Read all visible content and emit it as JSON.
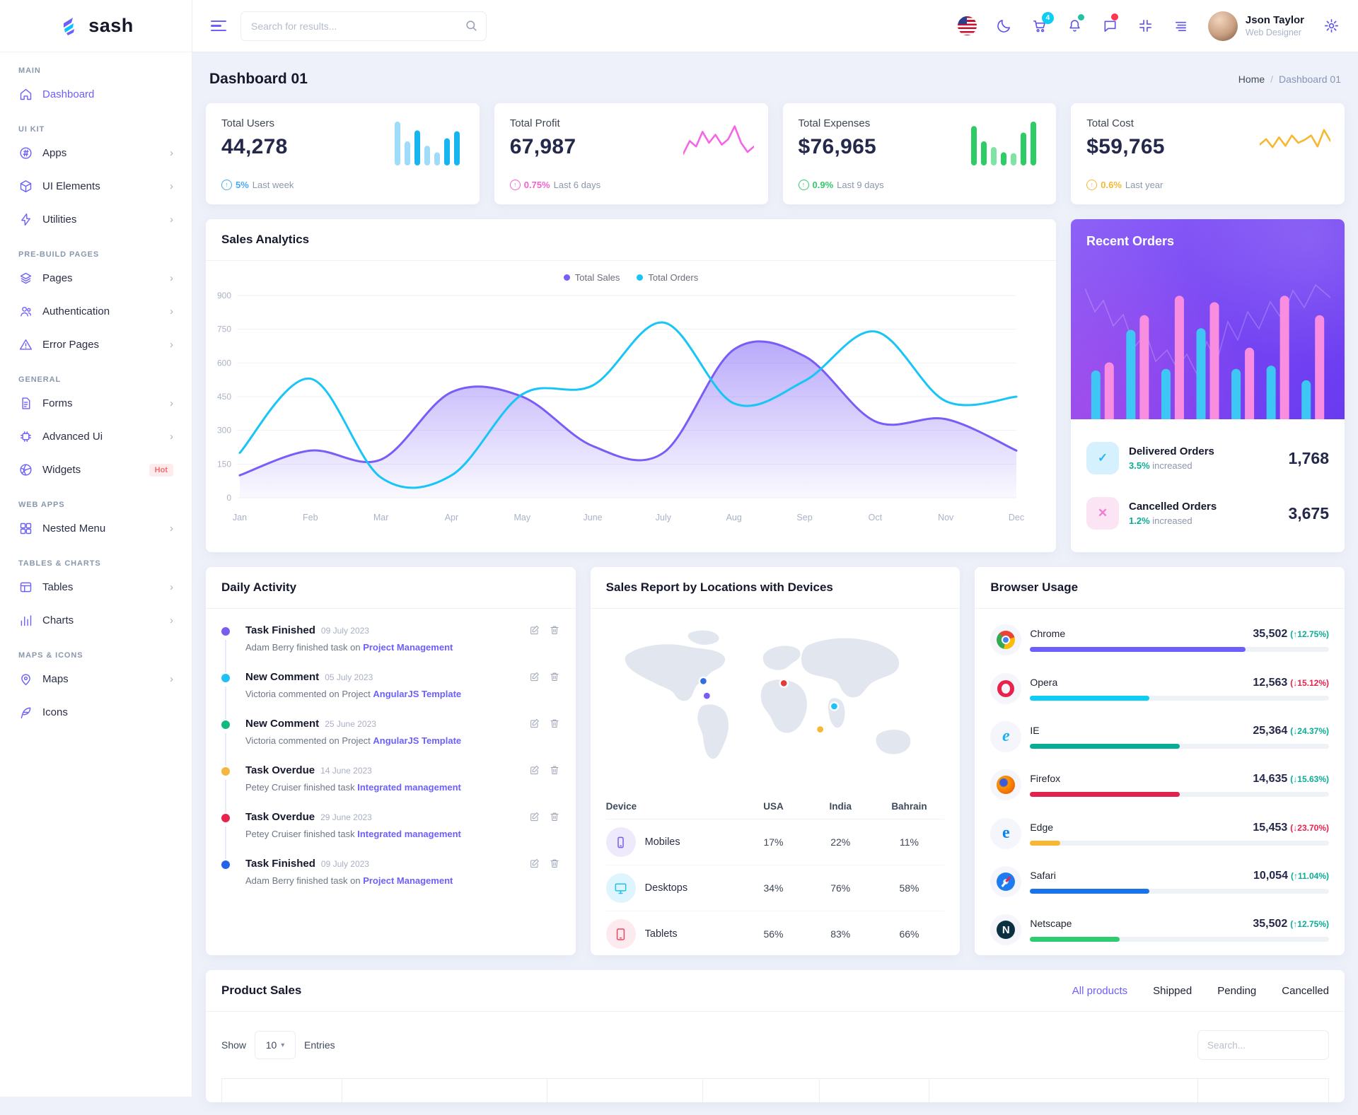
{
  "brand": {
    "name": "sash"
  },
  "topbar": {
    "search_placeholder": "Search for results...",
    "cart_badge": "4",
    "user": {
      "name": "Json Taylor",
      "role": "Web Designer"
    }
  },
  "page": {
    "title": "Dashboard 01",
    "breadcrumb": {
      "home": "Home",
      "separator": "/",
      "current": "Dashboard 01"
    }
  },
  "stats": [
    {
      "label": "Total Users",
      "value": "44,278",
      "delta": "5%",
      "note": "Last week",
      "delta_color": "#45aaf2",
      "chart": {
        "type": "bar",
        "heights": [
          1.0,
          0.55,
          0.8,
          0.45,
          0.3,
          0.62,
          0.78
        ],
        "colors": [
          "#9fdcfa",
          "#9fdcfa",
          "#17b5f0",
          "#9fdcfa",
          "#9fdcfa",
          "#17b5f0",
          "#17b5f0"
        ]
      }
    },
    {
      "label": "Total Profit",
      "value": "67,987",
      "delta": "0.75%",
      "note": "Last 6 days",
      "delta_color": "#f062d0",
      "chart": {
        "type": "line",
        "color": "#f664e8",
        "points": [
          0.8,
          0.45,
          0.6,
          0.2,
          0.5,
          0.28,
          0.55,
          0.4,
          0.05,
          0.5,
          0.75,
          0.6
        ]
      }
    },
    {
      "label": "Total Expenses",
      "value": "$76,965",
      "delta": "0.9%",
      "note": "Last 9 days",
      "delta_color": "#32cb69",
      "chart": {
        "type": "bar",
        "heights": [
          0.9,
          0.55,
          0.42,
          0.3,
          0.28,
          0.75,
          1.0
        ],
        "colors": [
          "#2ecc66",
          "#2ecc66",
          "#7fe3a5",
          "#2ecc66",
          "#7fe3a5",
          "#2ecc66",
          "#2ecc66"
        ]
      }
    },
    {
      "label": "Total Cost",
      "value": "$59,765",
      "delta": "0.6%",
      "note": "Last year",
      "delta_color": "#f7b731",
      "chart": {
        "type": "line",
        "color": "#f7b731",
        "points": [
          0.55,
          0.4,
          0.62,
          0.35,
          0.58,
          0.3,
          0.5,
          0.42,
          0.3,
          0.6,
          0.15,
          0.45
        ]
      }
    }
  ],
  "sales_analytics": {
    "title": "Sales Analytics",
    "chart_data": {
      "type": "area+line",
      "x": [
        "Jan",
        "Feb",
        "Mar",
        "Apr",
        "May",
        "June",
        "July",
        "Aug",
        "Sep",
        "Oct",
        "Nov",
        "Dec"
      ],
      "ylim": [
        0,
        900
      ],
      "yticks": [
        0,
        150,
        300,
        450,
        600,
        750,
        900
      ],
      "grid": true,
      "legend_position": "top",
      "series": [
        {
          "name": "Total Sales",
          "type": "area",
          "color": "#7a5cf6",
          "values": [
            100,
            210,
            170,
            470,
            450,
            230,
            200,
            660,
            630,
            340,
            350,
            210
          ]
        },
        {
          "name": "Total Orders",
          "type": "line",
          "color": "#17c5f6",
          "values": [
            200,
            530,
            90,
            100,
            460,
            500,
            780,
            420,
            520,
            740,
            430,
            450
          ]
        }
      ]
    }
  },
  "recent_orders": {
    "title": "Recent Orders",
    "bar_pairs": [
      [
        30,
        35
      ],
      [
        55,
        64
      ],
      [
        31,
        76
      ],
      [
        56,
        72
      ],
      [
        31,
        44
      ],
      [
        33,
        76
      ],
      [
        24,
        64
      ]
    ],
    "bar_colors": {
      "orders": "#3ec7f4",
      "sales": "#f98ee0"
    },
    "rows": [
      {
        "icon": "check",
        "label": "Delivered Orders",
        "delta": "3.5%",
        "delta_suffix": "increased",
        "value": "1,768",
        "icon_bg": "#d5f1fd",
        "icon_color": "#2ab5f2",
        "delta_color": "#09ad95"
      },
      {
        "icon": "cross",
        "label": "Cancelled Orders",
        "delta": "1.2%",
        "delta_suffix": "increased",
        "value": "3,675",
        "icon_bg": "#fbe4f3",
        "icon_color": "#ef7bd4",
        "delta_color": "#09ad95"
      }
    ]
  },
  "daily_activity": {
    "title": "Daily Activity",
    "items": [
      {
        "dot": "#7a5cf0",
        "title": "Task Finished",
        "date": "09 July 2023",
        "text": "Adam Berry finished task on",
        "link": "Project Management"
      },
      {
        "dot": "#1fc0f5",
        "title": "New Comment",
        "date": "05 July 2023",
        "text": "Victoria commented on Project",
        "link": "AngularJS Template"
      },
      {
        "dot": "#0fb981",
        "title": "New Comment",
        "date": "25 June 2023",
        "text": "Victoria commented on Project",
        "link": "AngularJS Template"
      },
      {
        "dot": "#f5b63f",
        "title": "Task Overdue",
        "date": "14 June 2023",
        "text": "Petey Cruiser finished task",
        "link": "Integrated management"
      },
      {
        "dot": "#e8224a",
        "title": "Task Overdue",
        "date": "29 June 2023",
        "text": "Petey Cruiser finished task",
        "link": "Integrated management"
      },
      {
        "dot": "#2563eb",
        "title": "Task Finished",
        "date": "09 July 2023",
        "text": "Adam Berry finished task on",
        "link": "Project Management"
      }
    ]
  },
  "sales_report": {
    "title": "Sales Report by Locations with Devices",
    "table": {
      "headers": [
        "Device",
        "USA",
        "India",
        "Bahrain"
      ],
      "rows": [
        {
          "device": "Mobiles",
          "icon": "mobile",
          "icon_bg": "#efeafb",
          "icon_color": "#7a5cf0",
          "values": [
            "17%",
            "22%",
            "11%"
          ]
        },
        {
          "device": "Desktops",
          "icon": "desktop",
          "icon_bg": "#dff5fd",
          "icon_color": "#1fc0f5",
          "values": [
            "34%",
            "76%",
            "58%"
          ]
        },
        {
          "device": "Tablets",
          "icon": "tablet",
          "icon_bg": "#fdeaee",
          "icon_color": "#e8475f",
          "values": [
            "56%",
            "83%",
            "66%"
          ]
        }
      ]
    },
    "map_markers": [
      {
        "x": 147,
        "y": 83,
        "color": "#2f6fe4",
        "place": "usa-north"
      },
      {
        "x": 152,
        "y": 104,
        "color": "#7a5cf0",
        "place": "usa-south"
      },
      {
        "x": 262,
        "y": 86,
        "color": "#e23b3b",
        "place": "europe"
      },
      {
        "x": 334,
        "y": 119,
        "color": "#1fc0f5",
        "place": "india"
      },
      {
        "x": 314,
        "y": 152,
        "color": "#f7b731",
        "place": "indian-ocean"
      }
    ]
  },
  "browser_usage": {
    "title": "Browser Usage",
    "rows": [
      {
        "name": "Chrome",
        "value": "35,502",
        "delta": "12.75%",
        "dir": "up",
        "delta_color": "#09ad95",
        "bar_color": "#6c5ffc",
        "bar_pct": 72
      },
      {
        "name": "Opera",
        "value": "12,563",
        "delta": "15.12%",
        "dir": "down",
        "delta_color": "#e8224a",
        "bar_color": "#0dcdf5",
        "bar_pct": 40
      },
      {
        "name": "IE",
        "value": "25,364",
        "delta": "24.37%",
        "dir": "down",
        "delta_color": "#09ad95",
        "bar_color": "#09ad95",
        "bar_pct": 50
      },
      {
        "name": "Firefox",
        "value": "14,635",
        "delta": "15.63%",
        "dir": "down",
        "delta_color": "#09ad95",
        "bar_color": "#e0224e",
        "bar_pct": 50
      },
      {
        "name": "Edge",
        "value": "15,453",
        "delta": "23.70%",
        "dir": "down",
        "delta_color": "#e8224a",
        "bar_color": "#f7b731",
        "bar_pct": 10
      },
      {
        "name": "Safari",
        "value": "10,054",
        "delta": "11.04%",
        "dir": "up",
        "delta_color": "#09ad95",
        "bar_color": "#1a73e8",
        "bar_pct": 40
      },
      {
        "name": "Netscape",
        "value": "35,502",
        "delta": "12.75%",
        "dir": "up",
        "delta_color": "#09ad95",
        "bar_color": "#2ecc71",
        "bar_pct": 30
      }
    ]
  },
  "product_sales": {
    "title": "Product Sales",
    "tabs": [
      {
        "label": "All products",
        "active": true
      },
      {
        "label": "Shipped",
        "active": false
      },
      {
        "label": "Pending",
        "active": false
      },
      {
        "label": "Cancelled",
        "active": false
      }
    ],
    "show_label": "Show",
    "entries_label": "Entries",
    "page_size": "10",
    "search_placeholder": "Search..."
  }
}
